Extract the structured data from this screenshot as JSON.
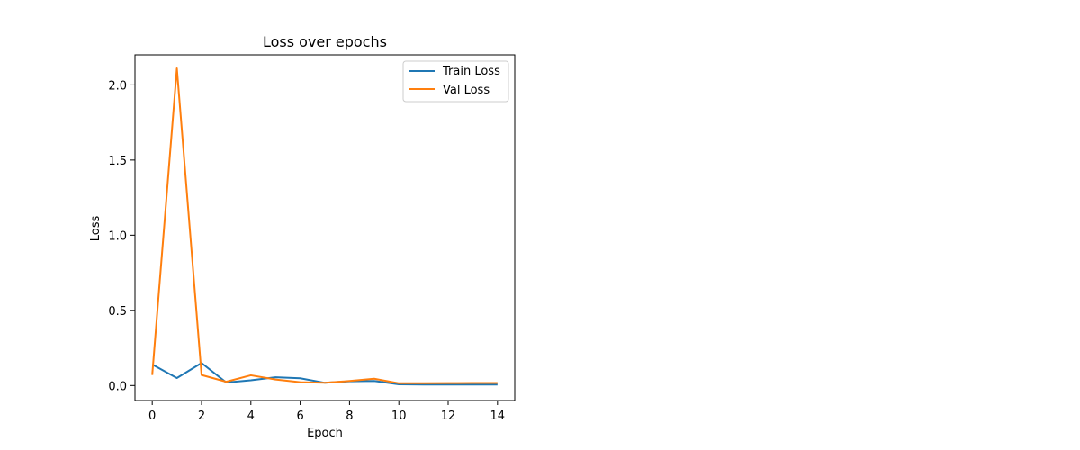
{
  "chart_data": {
    "type": "line",
    "title": "Loss over epochs",
    "xlabel": "Epoch",
    "ylabel": "Loss",
    "xlim": [
      -0.7,
      14.7
    ],
    "ylim": [
      -0.1,
      2.2
    ],
    "xticks": [
      0,
      2,
      4,
      6,
      8,
      10,
      12,
      14
    ],
    "xtick_labels": [
      "0",
      "2",
      "4",
      "6",
      "8",
      "10",
      "12",
      "14"
    ],
    "yticks": [
      0.0,
      0.5,
      1.0,
      1.5,
      2.0
    ],
    "ytick_labels": [
      "0.0",
      "0.5",
      "1.0",
      "1.5",
      "2.0"
    ],
    "grid": false,
    "legend_position": "top-right",
    "x": [
      0,
      1,
      2,
      3,
      4,
      5,
      6,
      7,
      8,
      9,
      10,
      11,
      12,
      13,
      14
    ],
    "series": [
      {
        "name": "Train Loss",
        "color": "#1f77b4",
        "values": [
          0.14,
          0.05,
          0.15,
          0.02,
          0.035,
          0.055,
          0.048,
          0.018,
          0.028,
          0.03,
          0.008,
          0.006,
          0.006,
          0.006,
          0.006
        ]
      },
      {
        "name": "Val Loss",
        "color": "#ff7f0e",
        "values": [
          0.07,
          2.11,
          0.07,
          0.025,
          0.068,
          0.04,
          0.022,
          0.018,
          0.03,
          0.045,
          0.015,
          0.015,
          0.016,
          0.017,
          0.017
        ]
      }
    ]
  }
}
